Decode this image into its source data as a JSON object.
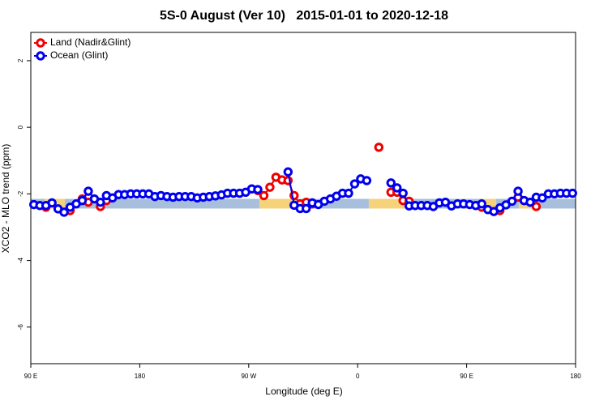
{
  "chart_data": {
    "type": "line",
    "title": "5S-0 August (Ver 10)   2015-01-01 to 2020-12-18",
    "x_label": "Longitude (deg E)",
    "y_label": "XCO2 - MLO trend (ppm)",
    "xlim": [
      90,
      540
    ],
    "ylim": [
      -7.1,
      2.85
    ],
    "xticks": [
      {
        "value": 90,
        "label": "90 E"
      },
      {
        "value": 180,
        "label": "180"
      },
      {
        "value": 270,
        "label": "90 W"
      },
      {
        "value": 360,
        "label": "0"
      },
      {
        "value": 450,
        "label": "90 E"
      },
      {
        "value": 540,
        "label": "180"
      }
    ],
    "yticks": [
      2,
      0,
      -2,
      -4,
      -6
    ],
    "legend": "top-left",
    "band": {
      "range": [
        -2.44,
        -2.15
      ],
      "segments": [
        {
          "x": [
            90,
            101.4
          ],
          "color": "#a7bfdc"
        },
        {
          "x": [
            101.4,
            118.1
          ],
          "color": "#f6d27a"
        },
        {
          "x": [
            118.1,
            278.8
          ],
          "color": "#a7bfdc"
        },
        {
          "x": [
            278.8,
            309
          ],
          "color": "#f6d27a"
        },
        {
          "x": [
            309,
            369.2
          ],
          "color": "#a7bfdc"
        },
        {
          "x": [
            369.2,
            402.7
          ],
          "color": "#f6d27a"
        },
        {
          "x": [
            402.7,
            463
          ],
          "color": "#a7bfdc"
        },
        {
          "x": [
            463,
            474.4
          ],
          "color": "#f6d27a"
        },
        {
          "x": [
            474.4,
            493.1
          ],
          "color": "#a7bfdc"
        },
        {
          "x": [
            493.1,
            506.5
          ],
          "color": "#f6d27a"
        },
        {
          "x": [
            506.5,
            540
          ],
          "color": "#a7bfdc"
        }
      ]
    },
    "x": [
      92.5,
      97.5,
      102.5,
      107.5,
      112.5,
      117.5,
      122.5,
      127.5,
      132.5,
      137.5,
      142.5,
      147.5,
      152.5,
      157.5,
      162.5,
      167.5,
      172.5,
      177.5,
      182.5,
      187.5,
      192.5,
      197.5,
      202.5,
      207.5,
      212.5,
      217.5,
      222.5,
      227.5,
      232.5,
      237.5,
      242.5,
      247.5,
      252.5,
      257.5,
      262.5,
      267.5,
      272.5,
      277.5,
      282.5,
      287.5,
      292.5,
      297.5,
      302.5,
      307.5,
      312.5,
      317.5,
      322.5,
      327.5,
      332.5,
      337.5,
      342.5,
      347.5,
      352.5,
      357.5,
      362.5,
      367.5,
      372.5,
      377.5,
      382.5,
      387.5,
      392.5,
      397.5,
      402.5,
      407.5,
      412.5,
      417.5,
      422.5,
      427.5,
      432.5,
      437.5,
      442.5,
      447.5,
      452.5,
      457.5,
      462.5,
      467.5,
      472.5,
      477.5,
      482.5,
      487.5,
      492.5,
      497.5,
      502.5,
      507.5,
      512.5,
      517.5,
      522.5,
      527.5,
      532.5,
      537.5
    ],
    "series": [
      {
        "name": "Land (Nadir&Glint)",
        "color": "#ee0000",
        "values": [
          null,
          null,
          -2.4,
          null,
          null,
          null,
          -2.5,
          null,
          -2.15,
          -2.25,
          null,
          -2.38,
          -2.2,
          null,
          null,
          null,
          null,
          null,
          null,
          null,
          null,
          null,
          null,
          null,
          null,
          null,
          null,
          null,
          null,
          null,
          null,
          null,
          null,
          null,
          null,
          null,
          null,
          -1.9,
          -2.05,
          -1.8,
          -1.5,
          -1.58,
          -1.6,
          -2.05,
          -2.3,
          -2.25,
          -2.3,
          null,
          null,
          null,
          null,
          null,
          null,
          null,
          null,
          null,
          null,
          -0.6,
          null,
          -1.95,
          -1.95,
          -2.2,
          -2.22,
          null,
          null,
          null,
          null,
          null,
          null,
          null,
          null,
          null,
          null,
          null,
          -2.4,
          null,
          null,
          -2.5,
          null,
          null,
          -2.1,
          -2.2,
          null,
          -2.38,
          null,
          null,
          null,
          null,
          null,
          null
        ]
      },
      {
        "name": "Ocean (Glint)",
        "color": "#0000ee",
        "values": [
          -2.32,
          -2.35,
          -2.35,
          -2.27,
          -2.45,
          -2.55,
          -2.4,
          -2.3,
          -2.2,
          -1.92,
          -2.15,
          -2.25,
          -2.05,
          -2.12,
          -2.02,
          -2.02,
          -2.0,
          -2.0,
          -2.0,
          -2.0,
          -2.08,
          -2.05,
          -2.08,
          -2.1,
          -2.08,
          -2.08,
          -2.08,
          -2.12,
          -2.1,
          -2.08,
          -2.06,
          -2.03,
          -1.98,
          -1.98,
          -1.98,
          -1.95,
          -1.85,
          -1.87,
          null,
          null,
          null,
          null,
          -1.34,
          -2.34,
          -2.44,
          -2.44,
          -2.27,
          -2.32,
          -2.22,
          -2.15,
          -2.07,
          -1.98,
          -1.98,
          -1.7,
          -1.55,
          -1.6,
          null,
          null,
          null,
          -1.67,
          -1.82,
          -1.98,
          -2.36,
          -2.35,
          -2.35,
          -2.35,
          -2.38,
          -2.27,
          -2.25,
          -2.36,
          -2.3,
          -2.3,
          -2.32,
          -2.35,
          -2.3,
          -2.47,
          -2.53,
          -2.42,
          -2.33,
          -2.22,
          -1.92,
          -2.2,
          -2.25,
          -2.1,
          -2.12,
          -2.0,
          -2.0,
          -1.98,
          -1.98,
          -1.98
        ]
      }
    ]
  }
}
